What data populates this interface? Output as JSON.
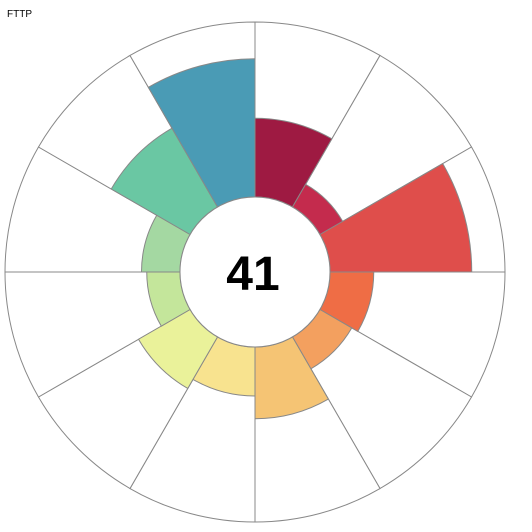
{
  "title": "FTTP",
  "center_value": "41",
  "chart_data": {
    "type": "polar-area",
    "title": "FTTP",
    "center_label": "41",
    "value_range": [
      0,
      1
    ],
    "inner_radius_fraction": 0.3,
    "segments": [
      {
        "value": 0.45,
        "color": "#9e1a42"
      },
      {
        "value": 0.15,
        "color": "#c42b4d"
      },
      {
        "value": 0.81,
        "color": "#df4e4b"
      },
      {
        "value": 0.25,
        "color": "#ef6d45"
      },
      {
        "value": 0.21,
        "color": "#f3a05f"
      },
      {
        "value": 0.41,
        "color": "#f5c474"
      },
      {
        "value": 0.28,
        "color": "#f8e38f"
      },
      {
        "value": 0.34,
        "color": "#eaf29a"
      },
      {
        "value": 0.19,
        "color": "#c4e69b"
      },
      {
        "value": 0.22,
        "color": "#a4d8a2"
      },
      {
        "value": 0.52,
        "color": "#6ac7a3"
      },
      {
        "value": 0.79,
        "color": "#4a9bb5"
      }
    ]
  }
}
